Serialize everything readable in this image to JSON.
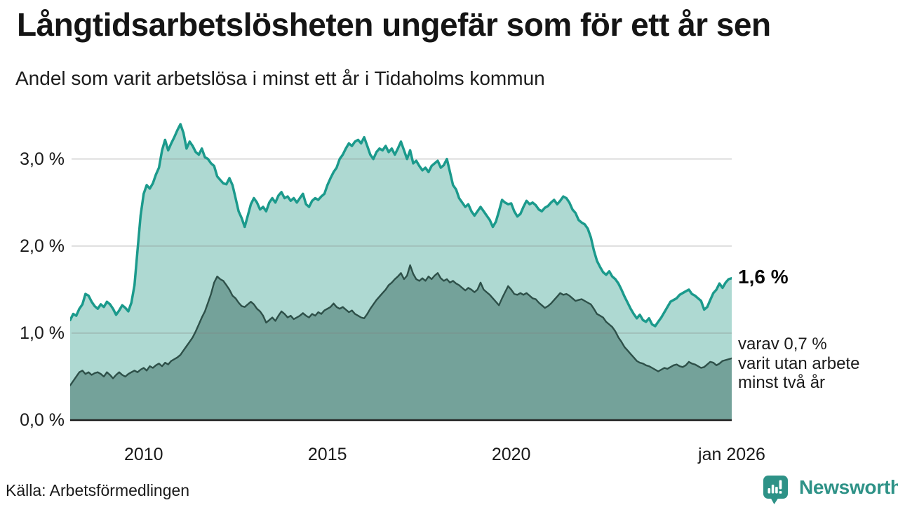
{
  "header": {
    "title": "Långtidsarbetslösheten ungefär som för ett år sen",
    "subtitle": "Andel som varit arbetslösa i minst ett år i Tidaholms kommun"
  },
  "annotations": {
    "latest_total": "1,6 %",
    "secondary": "varav 0,7 %\nvarit utan arbete\nminst två år"
  },
  "footer": {
    "source": "Källa: Arbetsförmedlingen",
    "brand": "Newsworthy",
    "brand_icon": "bar-chart-speech-bubble-icon"
  },
  "colors": {
    "accent_teal": "#1b9a8c",
    "light_fill": "#aed9d2",
    "dark_fill": "#74a29a",
    "dark_line": "#2e5049",
    "gridline": "rgba(130,130,130,0.35)",
    "baseline": "#1f1f1f",
    "brand_teal": "#2e9287"
  },
  "chart_data": {
    "type": "area",
    "title": "Långtidsarbetslösheten ungefär som för ett år sen",
    "subtitle": "Andel som varit arbetslösa i minst ett år i Tidaholms kommun",
    "xlabel": "",
    "ylabel": "",
    "unit": "%",
    "x_start": 2008.0,
    "x_end": 2026.0,
    "x_step": "monthly",
    "ylim": [
      0,
      3.55
    ],
    "grid": "horizontal",
    "legend_position": "right-annotations",
    "x_ticks": [
      {
        "x": 2010,
        "label": "2010"
      },
      {
        "x": 2015,
        "label": "2015"
      },
      {
        "x": 2020,
        "label": "2020"
      },
      {
        "x": 2026,
        "label": "jan 2026"
      }
    ],
    "y_ticks": [
      {
        "v": 0,
        "label": "0,0 %"
      },
      {
        "v": 1,
        "label": "1,0 %"
      },
      {
        "v": 2,
        "label": "2,0 %"
      },
      {
        "v": 3,
        "label": "3,0 %"
      }
    ],
    "series": [
      {
        "name": "Andel arbetslösa minst ett år",
        "latest_value": 1.6,
        "values": [
          1.15,
          1.22,
          1.2,
          1.28,
          1.33,
          1.45,
          1.43,
          1.36,
          1.31,
          1.28,
          1.33,
          1.3,
          1.36,
          1.33,
          1.28,
          1.21,
          1.26,
          1.32,
          1.29,
          1.25,
          1.35,
          1.55,
          1.95,
          2.35,
          2.6,
          2.7,
          2.66,
          2.72,
          2.82,
          2.9,
          3.1,
          3.22,
          3.1,
          3.18,
          3.25,
          3.33,
          3.4,
          3.3,
          3.12,
          3.2,
          3.15,
          3.08,
          3.05,
          3.12,
          3.02,
          3.0,
          2.95,
          2.92,
          2.8,
          2.76,
          2.72,
          2.71,
          2.78,
          2.7,
          2.55,
          2.4,
          2.32,
          2.22,
          2.35,
          2.48,
          2.55,
          2.5,
          2.42,
          2.45,
          2.4,
          2.5,
          2.55,
          2.5,
          2.58,
          2.62,
          2.55,
          2.57,
          2.52,
          2.55,
          2.5,
          2.55,
          2.6,
          2.48,
          2.45,
          2.52,
          2.55,
          2.53,
          2.57,
          2.6,
          2.7,
          2.78,
          2.85,
          2.9,
          3.0,
          3.05,
          3.12,
          3.18,
          3.15,
          3.2,
          3.22,
          3.18,
          3.25,
          3.15,
          3.05,
          3.0,
          3.08,
          3.12,
          3.1,
          3.15,
          3.08,
          3.12,
          3.05,
          3.12,
          3.2,
          3.1,
          3.0,
          3.1,
          2.95,
          2.98,
          2.92,
          2.87,
          2.9,
          2.85,
          2.92,
          2.95,
          2.98,
          2.9,
          2.93,
          3.0,
          2.85,
          2.7,
          2.65,
          2.55,
          2.5,
          2.45,
          2.48,
          2.4,
          2.35,
          2.4,
          2.45,
          2.4,
          2.35,
          2.3,
          2.22,
          2.28,
          2.4,
          2.53,
          2.5,
          2.48,
          2.49,
          2.4,
          2.34,
          2.37,
          2.45,
          2.52,
          2.48,
          2.5,
          2.47,
          2.42,
          2.4,
          2.44,
          2.46,
          2.5,
          2.53,
          2.48,
          2.52,
          2.57,
          2.55,
          2.5,
          2.42,
          2.38,
          2.3,
          2.27,
          2.25,
          2.2,
          2.1,
          1.95,
          1.83,
          1.76,
          1.7,
          1.67,
          1.71,
          1.65,
          1.62,
          1.57,
          1.5,
          1.42,
          1.35,
          1.28,
          1.22,
          1.17,
          1.21,
          1.15,
          1.13,
          1.17,
          1.1,
          1.08,
          1.13,
          1.18,
          1.24,
          1.3,
          1.36,
          1.38,
          1.4,
          1.44,
          1.46,
          1.48,
          1.5,
          1.45,
          1.43,
          1.4,
          1.37,
          1.27,
          1.3,
          1.38,
          1.46,
          1.5,
          1.57,
          1.52,
          1.58,
          1.62,
          1.63
        ]
      },
      {
        "name": "Andel utan arbete minst två år",
        "latest_value": 0.7,
        "values": [
          0.4,
          0.45,
          0.5,
          0.55,
          0.57,
          0.53,
          0.55,
          0.52,
          0.54,
          0.55,
          0.53,
          0.5,
          0.55,
          0.52,
          0.48,
          0.52,
          0.55,
          0.52,
          0.5,
          0.53,
          0.55,
          0.57,
          0.55,
          0.58,
          0.6,
          0.57,
          0.62,
          0.6,
          0.63,
          0.65,
          0.62,
          0.66,
          0.64,
          0.68,
          0.7,
          0.72,
          0.75,
          0.8,
          0.85,
          0.9,
          0.95,
          1.02,
          1.1,
          1.18,
          1.25,
          1.35,
          1.45,
          1.58,
          1.65,
          1.62,
          1.6,
          1.55,
          1.5,
          1.43,
          1.4,
          1.35,
          1.31,
          1.3,
          1.33,
          1.36,
          1.33,
          1.28,
          1.25,
          1.2,
          1.12,
          1.15,
          1.18,
          1.14,
          1.2,
          1.25,
          1.22,
          1.18,
          1.2,
          1.16,
          1.18,
          1.2,
          1.23,
          1.2,
          1.18,
          1.22,
          1.2,
          1.24,
          1.22,
          1.26,
          1.28,
          1.3,
          1.34,
          1.3,
          1.28,
          1.3,
          1.27,
          1.24,
          1.26,
          1.22,
          1.2,
          1.18,
          1.17,
          1.22,
          1.28,
          1.33,
          1.38,
          1.42,
          1.46,
          1.5,
          1.55,
          1.58,
          1.62,
          1.65,
          1.69,
          1.62,
          1.66,
          1.78,
          1.68,
          1.62,
          1.6,
          1.63,
          1.6,
          1.65,
          1.62,
          1.66,
          1.69,
          1.63,
          1.6,
          1.62,
          1.58,
          1.6,
          1.57,
          1.55,
          1.52,
          1.49,
          1.52,
          1.5,
          1.47,
          1.5,
          1.58,
          1.5,
          1.47,
          1.44,
          1.4,
          1.36,
          1.32,
          1.4,
          1.47,
          1.54,
          1.5,
          1.45,
          1.44,
          1.46,
          1.44,
          1.46,
          1.43,
          1.4,
          1.39,
          1.35,
          1.32,
          1.29,
          1.31,
          1.34,
          1.38,
          1.42,
          1.46,
          1.44,
          1.45,
          1.43,
          1.4,
          1.37,
          1.38,
          1.39,
          1.37,
          1.35,
          1.33,
          1.28,
          1.22,
          1.2,
          1.18,
          1.13,
          1.1,
          1.07,
          1.02,
          0.95,
          0.9,
          0.84,
          0.8,
          0.76,
          0.72,
          0.68,
          0.66,
          0.65,
          0.63,
          0.62,
          0.6,
          0.58,
          0.56,
          0.58,
          0.6,
          0.59,
          0.61,
          0.63,
          0.64,
          0.62,
          0.61,
          0.63,
          0.67,
          0.65,
          0.64,
          0.62,
          0.6,
          0.61,
          0.64,
          0.67,
          0.66,
          0.63,
          0.65,
          0.68,
          0.69,
          0.7,
          0.71
        ]
      }
    ]
  }
}
